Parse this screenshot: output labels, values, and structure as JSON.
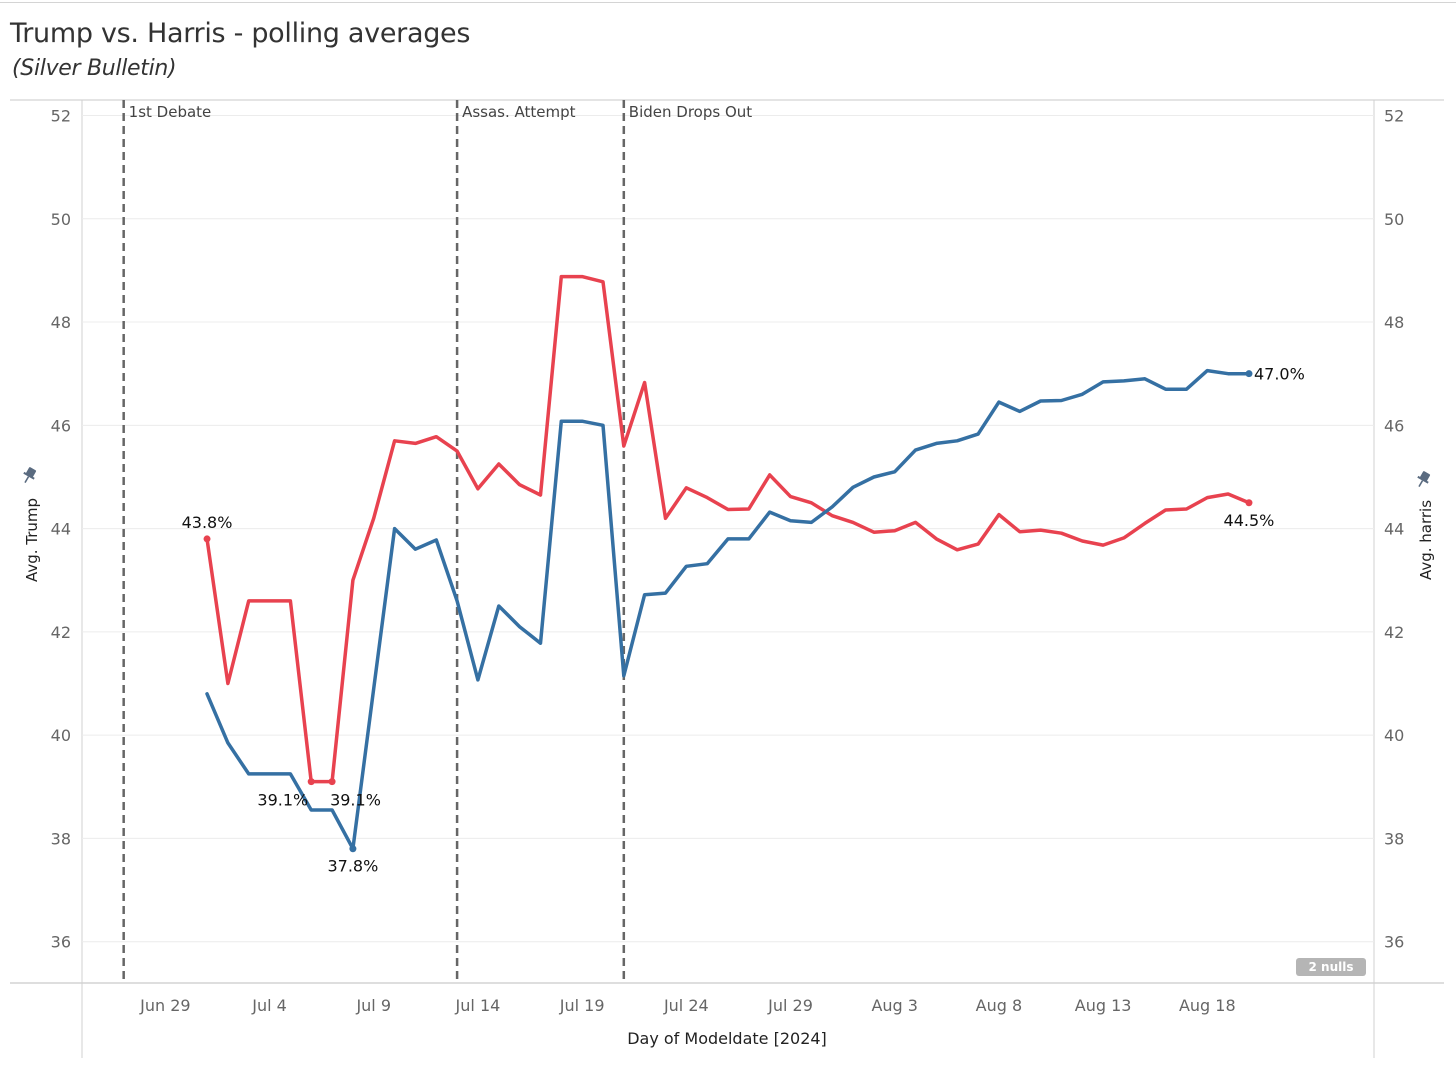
{
  "title": "Trump vs. Harris - polling averages",
  "subtitle": "(Silver Bulletin)",
  "nulls_badge": "2 nulls",
  "colors": {
    "trump": "#e8424f",
    "harris": "#3570a3",
    "axis_text": "#666666",
    "grid": "#ececec",
    "event": "#666666"
  },
  "chart_data": {
    "type": "line",
    "xlabel": "Day of Modeldate [2024]",
    "ylabel_left": "Avg. Trump",
    "ylabel_right": "Avg. harris",
    "ylim": [
      35.2,
      52.3
    ],
    "y_ticks": [
      36,
      38,
      40,
      42,
      44,
      46,
      48,
      50,
      52
    ],
    "xlim": [
      "2024-06-25",
      "2024-08-26"
    ],
    "x_ticks": [
      {
        "date": "2024-06-29",
        "label": "Jun 29"
      },
      {
        "date": "2024-07-04",
        "label": "Jul 4"
      },
      {
        "date": "2024-07-09",
        "label": "Jul 9"
      },
      {
        "date": "2024-07-14",
        "label": "Jul 14"
      },
      {
        "date": "2024-07-19",
        "label": "Jul 19"
      },
      {
        "date": "2024-07-24",
        "label": "Jul 24"
      },
      {
        "date": "2024-07-29",
        "label": "Jul 29"
      },
      {
        "date": "2024-08-03",
        "label": "Aug 3"
      },
      {
        "date": "2024-08-08",
        "label": "Aug 8"
      },
      {
        "date": "2024-08-13",
        "label": "Aug 13"
      },
      {
        "date": "2024-08-18",
        "label": "Aug 18"
      }
    ],
    "events": [
      {
        "date": "2024-06-27",
        "label": "1st Debate"
      },
      {
        "date": "2024-07-13",
        "label": "Assas. Attempt"
      },
      {
        "date": "2024-07-21",
        "label": "Biden Drops Out"
      }
    ],
    "series": [
      {
        "key": "trump",
        "points": [
          [
            "2024-07-01",
            43.8
          ],
          [
            "2024-07-02",
            41.0
          ],
          [
            "2024-07-03",
            42.6
          ],
          [
            "2024-07-04",
            42.6
          ],
          [
            "2024-07-05",
            42.6
          ],
          [
            "2024-07-06",
            39.1
          ],
          [
            "2024-07-07",
            39.1
          ],
          [
            "2024-07-08",
            43.0
          ],
          [
            "2024-07-09",
            44.2
          ],
          [
            "2024-07-10",
            45.7
          ],
          [
            "2024-07-11",
            45.65
          ],
          [
            "2024-07-12",
            45.78
          ],
          [
            "2024-07-13",
            45.5
          ],
          [
            "2024-07-14",
            44.77
          ],
          [
            "2024-07-15",
            45.25
          ],
          [
            "2024-07-16",
            44.85
          ],
          [
            "2024-07-17",
            44.65
          ],
          [
            "2024-07-18",
            48.88
          ],
          [
            "2024-07-19",
            48.88
          ],
          [
            "2024-07-20",
            48.78
          ],
          [
            "2024-07-21",
            45.6
          ],
          [
            "2024-07-22",
            46.83
          ],
          [
            "2024-07-23",
            44.2
          ],
          [
            "2024-07-24",
            44.79
          ],
          [
            "2024-07-25",
            44.6
          ],
          [
            "2024-07-26",
            44.37
          ],
          [
            "2024-07-27",
            44.38
          ],
          [
            "2024-07-28",
            45.04
          ],
          [
            "2024-07-29",
            44.62
          ],
          [
            "2024-07-30",
            44.5
          ],
          [
            "2024-07-31",
            44.25
          ],
          [
            "2024-08-01",
            44.12
          ],
          [
            "2024-08-02",
            43.93
          ],
          [
            "2024-08-03",
            43.96
          ],
          [
            "2024-08-04",
            44.12
          ],
          [
            "2024-08-05",
            43.8
          ],
          [
            "2024-08-06",
            43.59
          ],
          [
            "2024-08-07",
            43.7
          ],
          [
            "2024-08-08",
            44.27
          ],
          [
            "2024-08-09",
            43.94
          ],
          [
            "2024-08-10",
            43.97
          ],
          [
            "2024-08-11",
            43.91
          ],
          [
            "2024-08-12",
            43.76
          ],
          [
            "2024-08-13",
            43.68
          ],
          [
            "2024-08-14",
            43.82
          ],
          [
            "2024-08-15",
            44.1
          ],
          [
            "2024-08-16",
            44.36
          ],
          [
            "2024-08-17",
            44.38
          ],
          [
            "2024-08-18",
            44.6
          ],
          [
            "2024-08-19",
            44.67
          ],
          [
            "2024-08-20",
            44.5
          ]
        ]
      },
      {
        "key": "harris",
        "points": [
          [
            "2024-07-01",
            40.8
          ],
          [
            "2024-07-02",
            39.85
          ],
          [
            "2024-07-03",
            39.25
          ],
          [
            "2024-07-04",
            39.25
          ],
          [
            "2024-07-05",
            39.25
          ],
          [
            "2024-07-06",
            38.55
          ],
          [
            "2024-07-07",
            38.55
          ],
          [
            "2024-07-08",
            37.8
          ],
          [
            "2024-07-09",
            40.9
          ],
          [
            "2024-07-10",
            44.0
          ],
          [
            "2024-07-11",
            43.6
          ],
          [
            "2024-07-12",
            43.78
          ],
          [
            "2024-07-13",
            42.6
          ],
          [
            "2024-07-14",
            41.07
          ],
          [
            "2024-07-15",
            42.5
          ],
          [
            "2024-07-16",
            42.1
          ],
          [
            "2024-07-17",
            41.78
          ],
          [
            "2024-07-18",
            46.08
          ],
          [
            "2024-07-19",
            46.08
          ],
          [
            "2024-07-20",
            46.0
          ],
          [
            "2024-07-21",
            41.15
          ],
          [
            "2024-07-22",
            42.72
          ],
          [
            "2024-07-23",
            42.75
          ],
          [
            "2024-07-24",
            43.27
          ],
          [
            "2024-07-25",
            43.32
          ],
          [
            "2024-07-26",
            43.8
          ],
          [
            "2024-07-27",
            43.8
          ],
          [
            "2024-07-28",
            44.32
          ],
          [
            "2024-07-29",
            44.15
          ],
          [
            "2024-07-30",
            44.12
          ],
          [
            "2024-07-31",
            44.42
          ],
          [
            "2024-08-01",
            44.8
          ],
          [
            "2024-08-02",
            45.0
          ],
          [
            "2024-08-03",
            45.1
          ],
          [
            "2024-08-04",
            45.52
          ],
          [
            "2024-08-05",
            45.65
          ],
          [
            "2024-08-06",
            45.7
          ],
          [
            "2024-08-07",
            45.83
          ],
          [
            "2024-08-08",
            46.45
          ],
          [
            "2024-08-09",
            46.27
          ],
          [
            "2024-08-10",
            46.47
          ],
          [
            "2024-08-11",
            46.48
          ],
          [
            "2024-08-12",
            46.6
          ],
          [
            "2024-08-13",
            46.84
          ],
          [
            "2024-08-14",
            46.86
          ],
          [
            "2024-08-15",
            46.9
          ],
          [
            "2024-08-16",
            46.7
          ],
          [
            "2024-08-17",
            46.7
          ],
          [
            "2024-08-18",
            47.06
          ],
          [
            "2024-08-19",
            47.0
          ],
          [
            "2024-08-20",
            47.0
          ]
        ]
      }
    ],
    "annotations": [
      {
        "series": "trump",
        "date": "2024-07-01",
        "value": 43.8,
        "text": "43.8%",
        "pos": "above"
      },
      {
        "series": "trump",
        "date": "2024-07-06",
        "value": 39.1,
        "text": "39.1%",
        "pos": "below-left"
      },
      {
        "series": "trump",
        "date": "2024-07-07",
        "value": 39.1,
        "text": "39.1%",
        "pos": "below-right"
      },
      {
        "series": "harris",
        "date": "2024-07-08",
        "value": 37.8,
        "text": "37.8%",
        "pos": "below"
      },
      {
        "series": "harris",
        "date": "2024-08-20",
        "value": 47.0,
        "text": "47.0%",
        "pos": "right"
      },
      {
        "series": "trump",
        "date": "2024-08-20",
        "value": 44.5,
        "text": "44.5%",
        "pos": "below"
      }
    ]
  }
}
